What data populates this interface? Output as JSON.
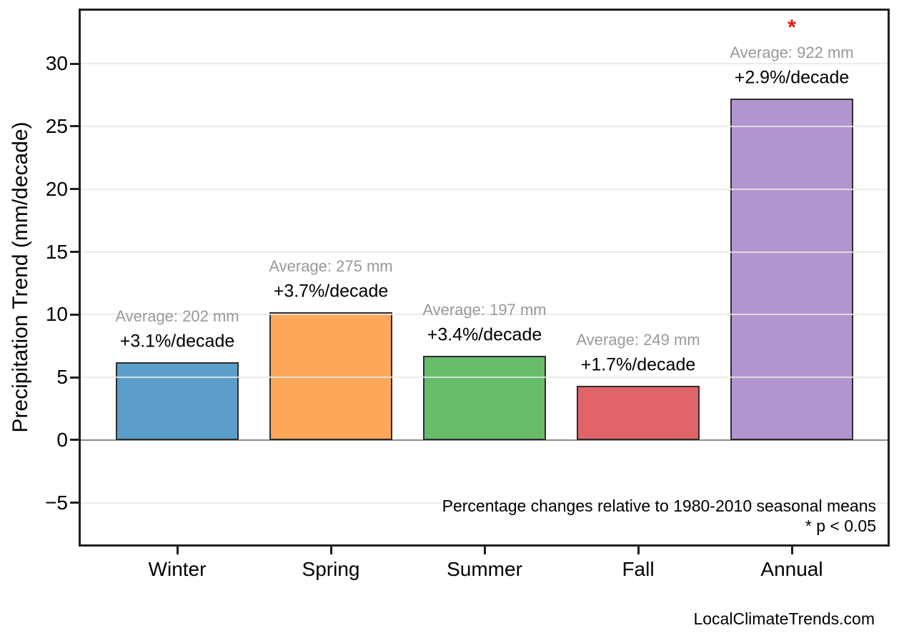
{
  "chart_data": {
    "type": "bar",
    "categories": [
      "Winter",
      "Spring",
      "Summer",
      "Fall",
      "Annual"
    ],
    "values": [
      6.2,
      10.2,
      6.7,
      4.3,
      27.2
    ],
    "bar_colors": [
      "#5B9EC9",
      "#FCA75A",
      "#67BC6C",
      "#E16468",
      "#B294CE"
    ],
    "bar_edge_color": "#2E2E2E",
    "annotations": [
      {
        "average": "Average: 202 mm",
        "trend": "+3.1%/decade",
        "significant": false
      },
      {
        "average": "Average: 275 mm",
        "trend": "+3.7%/decade",
        "significant": false
      },
      {
        "average": "Average: 197 mm",
        "trend": "+3.4%/decade",
        "significant": false
      },
      {
        "average": "Average: 249 mm",
        "trend": "+1.7%/decade",
        "significant": false
      },
      {
        "average": "Average: 922 mm",
        "trend": "+2.9%/decade",
        "significant": true
      }
    ],
    "significance_marker": "*",
    "significance_color": "#EE1111",
    "average_label_color": "#999999",
    "trend_label_color": "#000000",
    "ylabel": "Precipitation Trend (mm/decade)",
    "xlabel": "",
    "yticks": [
      -5,
      0,
      5,
      10,
      15,
      20,
      25,
      30
    ],
    "ylim": [
      -8.5,
      34.4
    ],
    "grid": "horizontal",
    "zero_line": true,
    "legend": "none",
    "note_line1": "Percentage changes relative to 1980-2010 seasonal means",
    "note_line2": "* p < 0.05"
  },
  "footer": {
    "watermark": "LocalClimateTrends.com"
  }
}
